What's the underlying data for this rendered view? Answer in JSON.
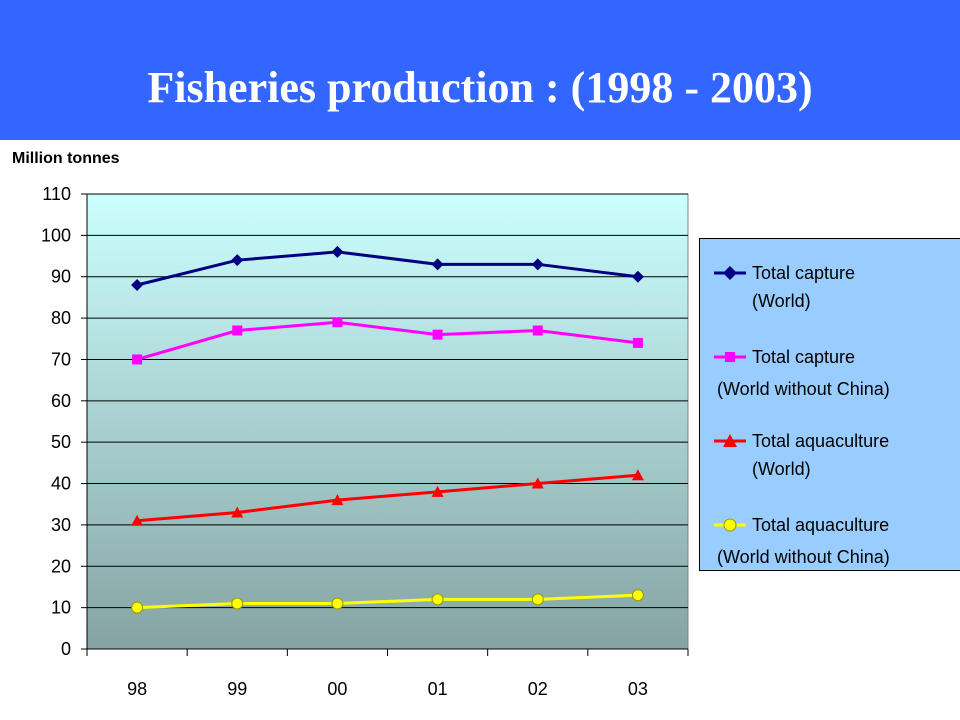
{
  "header": {
    "title": "Fisheries production : (1998 - 2003)",
    "background": "#3366ff"
  },
  "chart_data": {
    "type": "line",
    "title": "Fisheries production : (1998 - 2003)",
    "ylabel": "Million tonnes",
    "xlabel": "",
    "categories": [
      "98",
      "99",
      "00",
      "01",
      "02",
      "03"
    ],
    "ylim": [
      0,
      110
    ],
    "yticks": [
      0,
      10,
      20,
      30,
      40,
      50,
      60,
      70,
      80,
      90,
      100,
      110
    ],
    "grid": true,
    "legend_position": "right",
    "series": [
      {
        "name_line1": "Total capture",
        "name_line2": "(World)",
        "color": "#000080",
        "marker": "diamond",
        "values": [
          88,
          94,
          96,
          93,
          93,
          90
        ]
      },
      {
        "name_line1": "Total capture",
        "name_line2": "(World without China)",
        "color": "#ff00ff",
        "marker": "square",
        "values": [
          70,
          77,
          79,
          76,
          77,
          74
        ]
      },
      {
        "name_line1": "Total aquaculture",
        "name_line2": "(World)",
        "color": "#ff0000",
        "marker": "triangle",
        "values": [
          31,
          33,
          36,
          38,
          40,
          42
        ]
      },
      {
        "name_line1": "Total aquaculture",
        "name_line2": "(World without China)",
        "color": "#ffff00",
        "marker": "circle",
        "values": [
          10,
          11,
          11,
          12,
          12,
          13
        ]
      }
    ]
  }
}
